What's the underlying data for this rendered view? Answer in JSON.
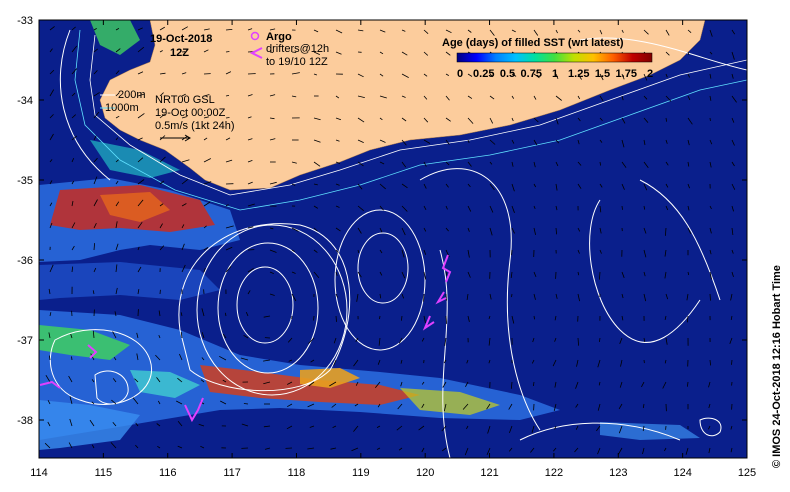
{
  "map": {
    "x_ticks": [
      "114",
      "115",
      "116",
      "117",
      "118",
      "119",
      "120",
      "121",
      "122",
      "123",
      "124",
      "125"
    ],
    "y_ticks": [
      "-33",
      "-34",
      "-35",
      "-36",
      "-37",
      "-38"
    ],
    "ocean_color": "#0a1f8c",
    "land_color": "#fccc9c"
  },
  "header": {
    "date": "19-Oct-2018",
    "time": "12Z"
  },
  "legend": {
    "argo_label": "Argo",
    "argo_color": "#e040ff",
    "drifters_label": "drifters@12h",
    "drifters_sub": "to 19/10 12Z",
    "drifter_color": "#e040ff"
  },
  "isobaths": {
    "d200": "200m",
    "d1000": "1000m"
  },
  "current_info": {
    "source": "NRT00 GSL",
    "valid": "19-Oct 00:00Z",
    "scale": "0.5m/s (1kt 24h)"
  },
  "colorbar": {
    "title": "Age (days) of filled SST (wrt latest)",
    "ticks": [
      "0",
      "0.25",
      "0.5",
      "0.75",
      "1",
      "1.25",
      "1.5",
      "1.75",
      "2"
    ],
    "colors": [
      "#000080",
      "#0000ff",
      "#0080ff",
      "#00c0ff",
      "#00e0a0",
      "#40e040",
      "#c0e000",
      "#ffc000",
      "#ff6000",
      "#c00000",
      "#800000"
    ]
  },
  "side_label": "© IMOS 24-Oct-2018 12:16 Hobart Time"
}
